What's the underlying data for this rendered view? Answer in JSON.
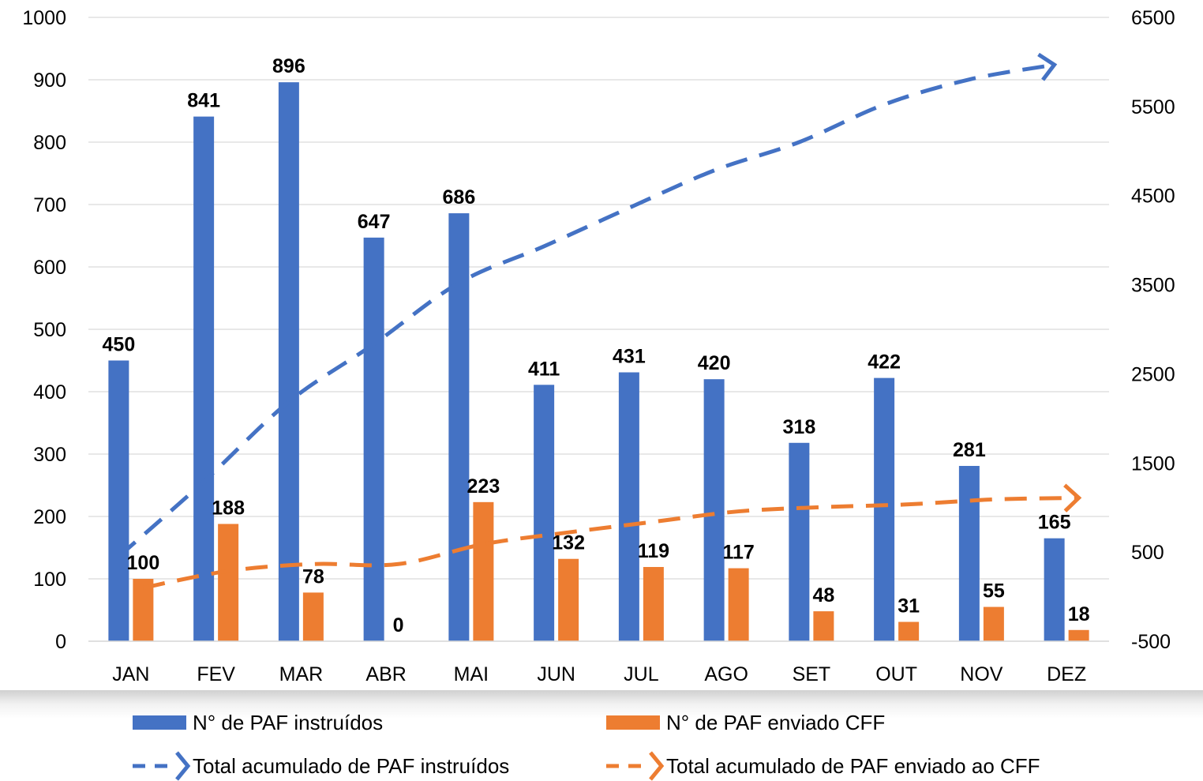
{
  "chart_data": {
    "type": "bar",
    "categories": [
      "JAN",
      "FEV",
      "MAR",
      "ABR",
      "MAI",
      "JUN",
      "JUL",
      "AGO",
      "SET",
      "OUT",
      "NOV",
      "DEZ"
    ],
    "series": [
      {
        "name": "N° de PAF instruídos",
        "kind": "bar",
        "axis": "left",
        "color": "#4472C4",
        "values": [
          450,
          841,
          896,
          647,
          686,
          411,
          431,
          420,
          318,
          422,
          281,
          165
        ]
      },
      {
        "name": "N° de PAF enviado CFF",
        "kind": "bar",
        "axis": "left",
        "color": "#ED7D31",
        "values": [
          100,
          188,
          78,
          0,
          223,
          132,
          119,
          117,
          48,
          31,
          55,
          18
        ]
      },
      {
        "name": "Total acumulado de PAF instruídos",
        "kind": "line",
        "style": "dashed-arrow",
        "axis": "right",
        "color": "#4472C4",
        "values": [
          450,
          1291,
          2187,
          2834,
          3520,
          3931,
          4362,
          4782,
          5100,
          5522,
          5803,
          5968
        ]
      },
      {
        "name": "Total acumulado de PAF enviado ao CFF",
        "kind": "line",
        "style": "dashed-arrow",
        "axis": "right",
        "color": "#ED7D31",
        "values": [
          100,
          288,
          366,
          366,
          589,
          721,
          840,
          957,
          1005,
          1036,
          1091,
          1109
        ]
      }
    ],
    "y_left": {
      "min": 0,
      "max": 1000,
      "ticks": [
        0,
        100,
        200,
        300,
        400,
        500,
        600,
        700,
        800,
        900,
        1000
      ]
    },
    "y_right": {
      "min": -500,
      "max": 6500,
      "ticks": [
        -500,
        500,
        1500,
        2500,
        3500,
        4500,
        5500,
        6500
      ]
    },
    "grid": true,
    "legend_position": "bottom",
    "title": "",
    "xlabel": "",
    "ylabel": ""
  }
}
